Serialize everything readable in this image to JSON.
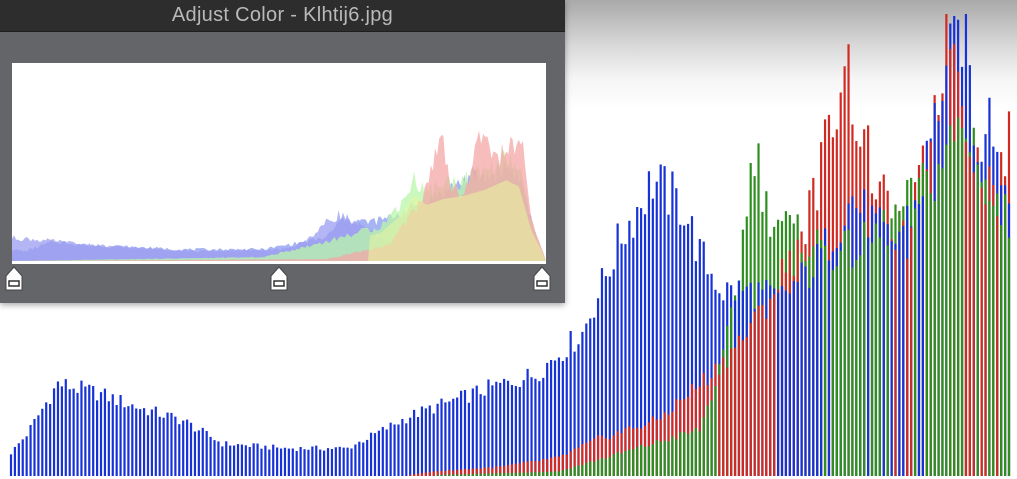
{
  "window": {
    "title": "Adjust Color - Klhtij6.jpg"
  },
  "colors": {
    "panel_bg": "#636568",
    "titlebar_bg": "#2d2d2d",
    "title_text": "#b9b9b9",
    "red": "#d02a22",
    "green": "#2c8f1e",
    "blue": "#1732d6",
    "mini_red": "#f4a6a6",
    "mini_green": "#b8f5a8",
    "mini_yellow": "#e9f59c",
    "mini_blue": "#a7b4f4",
    "mini_purple": "#9b9cf0"
  },
  "levels": {
    "black_point": 0,
    "midtone": 0.5,
    "white_point": 1.0
  },
  "handles": [
    {
      "name": "black-point-handle",
      "icon": "slider-handle-icon"
    },
    {
      "name": "midtone-handle",
      "icon": "slider-handle-icon"
    },
    {
      "name": "white-point-handle",
      "icon": "slider-handle-icon"
    }
  ],
  "chart_data": {
    "type": "bar",
    "title": "",
    "series": [
      {
        "color": "blue",
        "anchors": [
          [
            0,
            0.05
          ],
          [
            4,
            0.09
          ],
          [
            12,
            0.2
          ],
          [
            22,
            0.18
          ],
          [
            32,
            0.15
          ],
          [
            44,
            0.12
          ],
          [
            54,
            0.07
          ],
          [
            70,
            0.06
          ],
          [
            86,
            0.06
          ],
          [
            102,
            0.13
          ],
          [
            122,
            0.19
          ],
          [
            134,
            0.22
          ],
          [
            146,
            0.31
          ],
          [
            156,
            0.52
          ],
          [
            164,
            0.64
          ],
          [
            172,
            0.58
          ],
          [
            176,
            0.48
          ],
          [
            182,
            0.4
          ],
          [
            190,
            0.4
          ],
          [
            196,
            0.38
          ],
          [
            205,
            0.45
          ],
          [
            215,
            0.6
          ],
          [
            225,
            0.5
          ],
          [
            232,
            0.6
          ],
          [
            238,
            0.85
          ],
          [
            244,
            0.99
          ],
          [
            247,
            0.65
          ],
          [
            250,
            0.86
          ],
          [
            252,
            0.7
          ],
          [
            255,
            0.6
          ]
        ]
      },
      {
        "color": "green",
        "anchors": [
          [
            0,
            0
          ],
          [
            100,
            0
          ],
          [
            140,
            0.01
          ],
          [
            176,
            0.1
          ],
          [
            182,
            0.25
          ],
          [
            186,
            0.45
          ],
          [
            190,
            0.72
          ],
          [
            193,
            0.58
          ],
          [
            196,
            0.56
          ],
          [
            200,
            0.52
          ],
          [
            206,
            0.5
          ],
          [
            212,
            0.48
          ],
          [
            218,
            0.5
          ],
          [
            225,
            0.55
          ],
          [
            236,
            0.65
          ],
          [
            242,
            0.75
          ],
          [
            247,
            0.72
          ],
          [
            250,
            0.6
          ],
          [
            255,
            0.55
          ]
        ]
      },
      {
        "color": "red",
        "anchors": [
          [
            0,
            0
          ],
          [
            100,
            0
          ],
          [
            108,
            0.01
          ],
          [
            125,
            0.02
          ],
          [
            140,
            0.04
          ],
          [
            150,
            0.08
          ],
          [
            165,
            0.12
          ],
          [
            172,
            0.17
          ],
          [
            180,
            0.23
          ],
          [
            190,
            0.33
          ],
          [
            200,
            0.48
          ],
          [
            205,
            0.6
          ],
          [
            211,
            0.82
          ],
          [
            213,
            0.92
          ],
          [
            216,
            0.78
          ],
          [
            220,
            0.66
          ],
          [
            225,
            0.55
          ],
          [
            229,
            0.5
          ],
          [
            232,
            0.62
          ],
          [
            237,
            0.85
          ],
          [
            240,
            0.99
          ],
          [
            244,
            0.78
          ],
          [
            248,
            0.65
          ],
          [
            252,
            0.62
          ],
          [
            255,
            0.72
          ]
        ]
      }
    ],
    "x_range": [
      0,
      255
    ],
    "y_range": [
      0,
      1
    ]
  },
  "mini_chart": {
    "anchors": {
      "blue": [
        [
          0,
          0.06
        ],
        [
          6,
          0.05
        ],
        [
          20,
          0.1
        ],
        [
          40,
          0.08
        ],
        [
          80,
          0.06
        ],
        [
          120,
          0.06
        ],
        [
          150,
          0.12
        ],
        [
          158,
          0.22
        ],
        [
          170,
          0.2
        ],
        [
          180,
          0.22
        ],
        [
          196,
          0.3
        ],
        [
          210,
          0.38
        ],
        [
          220,
          0.44
        ],
        [
          228,
          0.43
        ],
        [
          234,
          0.48
        ],
        [
          238,
          0.48
        ],
        [
          242,
          0.44
        ],
        [
          246,
          0.3
        ],
        [
          252,
          0.05
        ],
        [
          255,
          0
        ]
      ],
      "purple": [
        [
          0,
          0.12
        ],
        [
          12,
          0.11
        ],
        [
          40,
          0.08
        ],
        [
          90,
          0.05
        ],
        [
          130,
          0.06
        ],
        [
          140,
          0.1
        ],
        [
          148,
          0.18
        ],
        [
          156,
          0.24
        ],
        [
          166,
          0.18
        ],
        [
          180,
          0.1
        ],
        [
          200,
          0.1
        ],
        [
          228,
          0.1
        ],
        [
          236,
          0.08
        ],
        [
          255,
          0
        ]
      ],
      "green": [
        [
          0,
          0
        ],
        [
          120,
          0.02
        ],
        [
          150,
          0.1
        ],
        [
          176,
          0.18
        ],
        [
          186,
          0.3
        ],
        [
          192,
          0.42
        ],
        [
          198,
          0.36
        ],
        [
          206,
          0.4
        ],
        [
          216,
          0.42
        ],
        [
          226,
          0.46
        ],
        [
          236,
          0.52
        ],
        [
          242,
          0.48
        ],
        [
          248,
          0.2
        ],
        [
          255,
          0
        ]
      ],
      "red": [
        [
          0,
          0
        ],
        [
          150,
          0.01
        ],
        [
          180,
          0.08
        ],
        [
          196,
          0.32
        ],
        [
          202,
          0.55
        ],
        [
          206,
          0.62
        ],
        [
          210,
          0.38
        ],
        [
          216,
          0.33
        ],
        [
          222,
          0.6
        ],
        [
          226,
          0.66
        ],
        [
          232,
          0.52
        ],
        [
          238,
          0.6
        ],
        [
          244,
          0.56
        ],
        [
          248,
          0.22
        ],
        [
          255,
          0
        ]
      ]
    }
  }
}
